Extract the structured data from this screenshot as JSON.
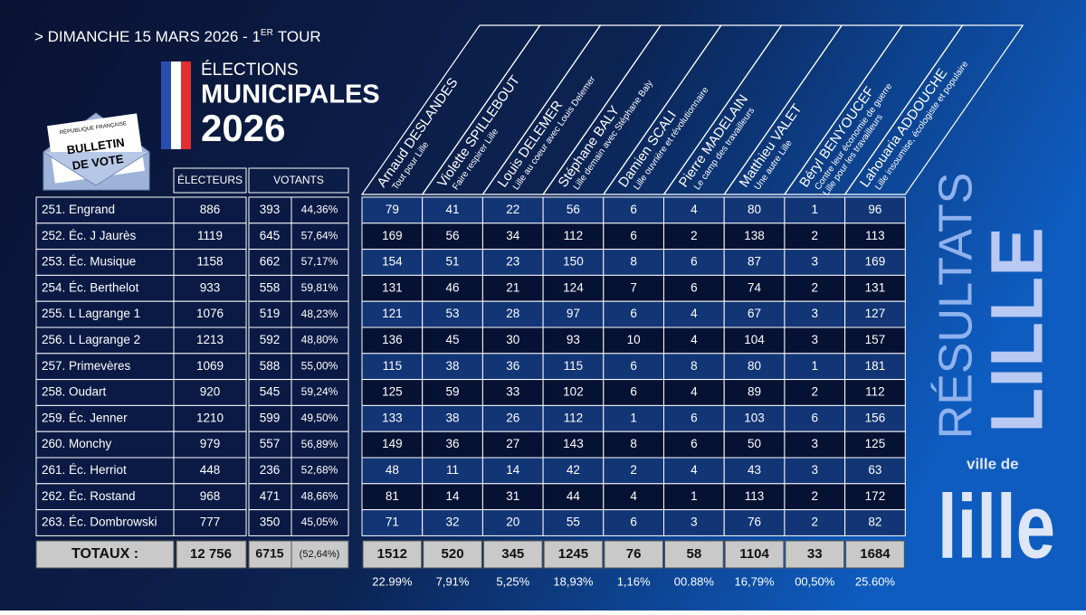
{
  "header": {
    "date": "> DIMANCHE 15 MARS 2026 - 1",
    "date_sup": "ER",
    "date_tail": "TOUR"
  },
  "logo": {
    "line1": "ÉLECTIONS",
    "line2": "MUNICIPALES",
    "line3": "2026"
  },
  "ballot": {
    "top": "RÉPUBLIQUE FRANÇAISE",
    "line1": "BULLETIN",
    "line2": "DE VOTE"
  },
  "columns": {
    "electeurs": "ÉLECTEURS",
    "votants": "VOTANTS"
  },
  "candidates": [
    {
      "name": "Arnaud DESLANDES",
      "list": [
        "Tout pour Lille"
      ]
    },
    {
      "name": "Violette SPILLEBOUT",
      "list": [
        "Faire respirer Lille"
      ]
    },
    {
      "name": "Louis DELEMER",
      "list": [
        "Lille au coeur avec Louis Delemer"
      ]
    },
    {
      "name": "Stéphane BALY",
      "list": [
        "Lille demain avec Stéphane Baly"
      ]
    },
    {
      "name": "Damien SCALI",
      "list": [
        "Lille ouvrière et révolutionnaire"
      ]
    },
    {
      "name": "Pierre MADELAIN",
      "list": [
        "Le camp des travailleurs"
      ]
    },
    {
      "name": "Matthieu VALET",
      "list": [
        "Une autre Lille"
      ]
    },
    {
      "name": "Béryl BENYOUCEF",
      "list": [
        "Contre leur économie de guerre",
        "Lille pour les travailleurs"
      ]
    },
    {
      "name": "Lahouaria ADDOUCHE",
      "list": [
        "Lille insoumise, écologiste et populaire"
      ]
    }
  ],
  "rows": [
    {
      "bureau": "251. Engrand",
      "electeurs": 886,
      "votants": 393,
      "pct": "44,36%",
      "votes": [
        79,
        41,
        22,
        56,
        6,
        4,
        80,
        1,
        96
      ]
    },
    {
      "bureau": "252. Éc. J Jaurès",
      "electeurs": 1119,
      "votants": 645,
      "pct": "57,64%",
      "votes": [
        169,
        56,
        34,
        112,
        6,
        2,
        138,
        2,
        113
      ]
    },
    {
      "bureau": "253. Éc. Musique",
      "electeurs": 1158,
      "votants": 662,
      "pct": "57,17%",
      "votes": [
        154,
        51,
        23,
        150,
        8,
        6,
        87,
        3,
        169
      ]
    },
    {
      "bureau": "254. Éc. Berthelot",
      "electeurs": 933,
      "votants": 558,
      "pct": "59,81%",
      "votes": [
        131,
        46,
        21,
        124,
        7,
        6,
        74,
        2,
        131
      ]
    },
    {
      "bureau": "255. L Lagrange 1",
      "electeurs": 1076,
      "votants": 519,
      "pct": "48,23%",
      "votes": [
        121,
        53,
        28,
        97,
        6,
        4,
        67,
        3,
        127
      ]
    },
    {
      "bureau": "256. L Lagrange 2",
      "electeurs": 1213,
      "votants": 592,
      "pct": "48,80%",
      "votes": [
        136,
        45,
        30,
        93,
        10,
        4,
        104,
        3,
        157
      ]
    },
    {
      "bureau": "257. Primevères",
      "electeurs": 1069,
      "votants": 588,
      "pct": "55,00%",
      "votes": [
        115,
        38,
        36,
        115,
        6,
        8,
        80,
        1,
        181
      ]
    },
    {
      "bureau": "258. Oudart",
      "electeurs": 920,
      "votants": 545,
      "pct": "59,24%",
      "votes": [
        125,
        59,
        33,
        102,
        6,
        4,
        89,
        2,
        112
      ]
    },
    {
      "bureau": "259. Éc. Jenner",
      "electeurs": 1210,
      "votants": 599,
      "pct": "49,50%",
      "votes": [
        133,
        38,
        26,
        112,
        1,
        6,
        103,
        6,
        156
      ]
    },
    {
      "bureau": "260. Monchy",
      "electeurs": 979,
      "votants": 557,
      "pct": "56,89%",
      "votes": [
        149,
        36,
        27,
        143,
        8,
        6,
        50,
        3,
        125
      ]
    },
    {
      "bureau": "261. Éc. Herriot",
      "electeurs": 448,
      "votants": 236,
      "pct": "52,68%",
      "votes": [
        48,
        11,
        14,
        42,
        2,
        4,
        43,
        3,
        63
      ]
    },
    {
      "bureau": "262. Éc. Rostand",
      "electeurs": 968,
      "votants": 471,
      "pct": "48,66%",
      "votes": [
        81,
        14,
        31,
        44,
        4,
        1,
        113,
        2,
        172
      ]
    },
    {
      "bureau": "263. Éc. Dombrowski",
      "electeurs": 777,
      "votants": 350,
      "pct": "45,05%",
      "votes": [
        71,
        32,
        20,
        55,
        6,
        3,
        76,
        2,
        82
      ]
    }
  ],
  "totals": {
    "label": "TOTAUX :",
    "electeurs": "12 756",
    "votants": 6715,
    "pct": "(52,64%)",
    "votes": [
      1512,
      520,
      345,
      1245,
      76,
      58,
      1104,
      33,
      1684
    ],
    "shares": [
      "22.99%",
      "7,91%",
      "5,25%",
      "18,93%",
      "1,16%",
      "00.88%",
      "16,79%",
      "00,50%",
      "25.60%"
    ]
  },
  "side": {
    "resultats": "RÉSULTATS",
    "city": "LILLE",
    "logo_small": "ville de",
    "logo_big": "lille"
  }
}
